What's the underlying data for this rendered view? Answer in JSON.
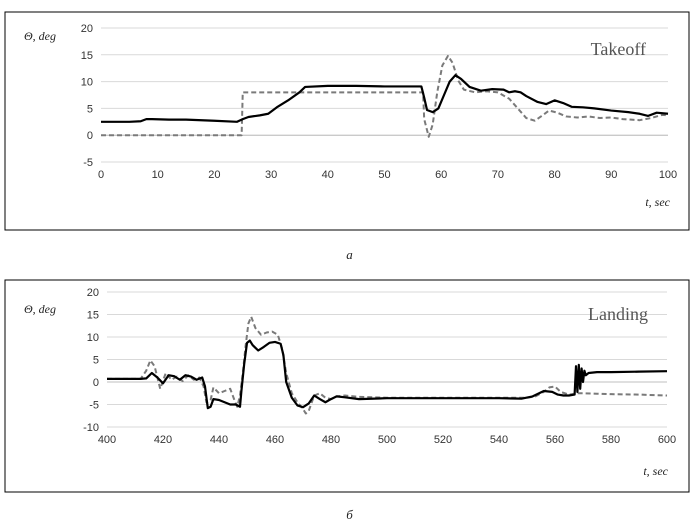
{
  "captions": [
    "a",
    "б"
  ],
  "colors": {
    "series_1": "#000000",
    "series_2": "#7a7a7a",
    "grid": "#d9d9d9",
    "frame": "#000000"
  },
  "chart_data": [
    {
      "type": "line",
      "title": "Takeoff",
      "xlabel": "t, sec",
      "ylabel": "Θ, deg",
      "xlim": [
        0,
        100
      ],
      "ylim": [
        -5,
        20
      ],
      "xticks": [
        0,
        10,
        20,
        30,
        40,
        50,
        60,
        70,
        80,
        90,
        100
      ],
      "yticks": [
        -5,
        0,
        5,
        10,
        15,
        20
      ],
      "grid": "horizontal",
      "series": [
        {
          "style": "solid",
          "x": [
            0,
            5,
            7,
            8,
            9,
            12,
            15,
            20,
            24,
            25,
            26,
            28,
            29.5,
            31,
            33,
            35,
            36,
            40,
            45,
            50,
            55,
            56.5,
            57,
            57.5,
            58.5,
            59.5,
            60.5,
            61.5,
            62.5,
            63.5,
            65,
            67,
            69,
            71,
            72,
            73,
            74,
            75,
            77,
            78.5,
            80,
            81.5,
            83,
            85,
            87,
            90,
            93,
            95,
            96.5,
            98,
            100
          ],
          "y": [
            2.5,
            2.5,
            2.6,
            3.0,
            3.0,
            2.9,
            2.9,
            2.7,
            2.5,
            3.0,
            3.4,
            3.7,
            4.0,
            5.2,
            6.5,
            8.0,
            9.0,
            9.2,
            9.2,
            9.1,
            9.1,
            9.1,
            7.0,
            4.7,
            4.3,
            5.0,
            7.5,
            10.0,
            11.2,
            10.5,
            9.0,
            8.3,
            8.6,
            8.5,
            8.0,
            8.2,
            8.0,
            7.3,
            6.2,
            5.8,
            6.5,
            6.0,
            5.3,
            5.2,
            5.0,
            4.6,
            4.3,
            4.0,
            3.6,
            4.2,
            4.0
          ]
        },
        {
          "style": "dashed",
          "x": [
            0,
            24.8,
            25,
            30,
            40,
            50,
            56.8,
            57,
            57.8,
            58.5,
            59.3,
            60.2,
            61.2,
            62,
            63,
            64,
            66,
            68,
            70,
            72,
            73.5,
            75,
            76.5,
            78,
            79,
            80.5,
            82,
            84,
            86,
            88,
            90,
            92,
            95,
            97,
            99,
            100
          ],
          "y": [
            0,
            0,
            8.0,
            8.0,
            8.0,
            8.0,
            8.0,
            3.0,
            -0.3,
            2.0,
            8.0,
            13.0,
            14.8,
            13.5,
            10.2,
            8.5,
            8.0,
            8.2,
            8.0,
            6.8,
            5.0,
            3.2,
            2.7,
            3.8,
            4.6,
            4.2,
            3.5,
            3.3,
            3.5,
            3.2,
            3.3,
            3.0,
            2.8,
            3.2,
            3.8,
            3.7
          ]
        }
      ]
    },
    {
      "type": "line",
      "title": "Landing",
      "xlabel": "t, sec",
      "ylabel": "Θ, deg",
      "xlim": [
        400,
        600
      ],
      "ylim": [
        -10,
        20
      ],
      "xticks": [
        400,
        420,
        440,
        460,
        480,
        500,
        520,
        540,
        560,
        580,
        600
      ],
      "yticks": [
        -10,
        -5,
        0,
        5,
        10,
        15,
        20
      ],
      "grid": "horizontal",
      "series": [
        {
          "style": "solid",
          "x": [
            400,
            412,
            414,
            416,
            418,
            420,
            422,
            424,
            426,
            428,
            430,
            432,
            434,
            435,
            436,
            437,
            438,
            440,
            442,
            444,
            446,
            447.5,
            448,
            449,
            450,
            451,
            452,
            454,
            456,
            458,
            460,
            462,
            463,
            464,
            466,
            468,
            470,
            472,
            474,
            476,
            478,
            480,
            482,
            485,
            490,
            500,
            520,
            540,
            548,
            552,
            556,
            559,
            561,
            563,
            565,
            567,
            567.5,
            568,
            568.5,
            569,
            569.5,
            570,
            570.5,
            571,
            572,
            575,
            580,
            590,
            600
          ],
          "y": [
            0.7,
            0.7,
            0.8,
            2.0,
            1.0,
            -0.3,
            1.5,
            1.3,
            0.5,
            1.5,
            1.2,
            0.5,
            1.0,
            -1.0,
            -5.8,
            -5.5,
            -3.8,
            -4.0,
            -4.5,
            -5.0,
            -5.0,
            -5.5,
            -2.0,
            4.0,
            8.7,
            9.2,
            8.2,
            7.0,
            7.8,
            8.7,
            8.9,
            8.5,
            6.0,
            0.0,
            -3.5,
            -5.2,
            -5.6,
            -4.8,
            -3.0,
            -3.8,
            -4.5,
            -3.8,
            -3.2,
            -3.4,
            -3.8,
            -3.6,
            -3.6,
            -3.6,
            -3.7,
            -3.2,
            -2.0,
            -2.2,
            -2.8,
            -3.0,
            -3.0,
            -2.8,
            3.5,
            -2.2,
            3.8,
            -1.5,
            3.0,
            0.0,
            2.5,
            1.5,
            2.0,
            2.2,
            2.2,
            2.3,
            2.4
          ]
        },
        {
          "style": "dashed",
          "x": [
            400,
            412,
            414,
            415.5,
            417,
            419,
            420,
            421,
            423,
            425,
            427,
            429,
            431,
            433,
            434.5,
            435.5,
            437,
            438,
            440,
            442,
            444,
            445.5,
            446.5,
            447.5,
            448.5,
            449.5,
            450.5,
            451.5,
            453,
            455,
            457,
            459,
            461,
            462.5,
            464,
            466,
            468,
            470,
            471,
            472,
            474,
            476,
            478,
            480,
            482,
            485,
            490,
            500,
            520,
            540,
            550,
            553,
            556,
            558,
            560,
            562,
            565,
            568,
            570,
            575,
            580,
            590,
            600
          ],
          "y": [
            0.7,
            0.7,
            2.5,
            4.8,
            3.5,
            -1.5,
            0.3,
            2.0,
            0.5,
            1.2,
            0.2,
            1.5,
            0.5,
            1.0,
            -1.0,
            -4.5,
            -4.0,
            -1.2,
            -2.5,
            -2.0,
            -1.5,
            -4.0,
            -5.5,
            -3.0,
            2.0,
            8.0,
            13.0,
            14.5,
            12.0,
            10.5,
            11.0,
            11.2,
            10.5,
            7.5,
            2.0,
            -2.5,
            -4.5,
            -6.0,
            -7.0,
            -6.5,
            -3.0,
            -2.5,
            -3.5,
            -3.8,
            -3.2,
            -3.0,
            -3.3,
            -3.5,
            -3.5,
            -3.5,
            -3.5,
            -3.2,
            -2.2,
            -1.2,
            -1.0,
            -2.2,
            -2.8,
            -2.5,
            -2.5,
            -2.6,
            -2.7,
            -2.8,
            -3.0
          ]
        }
      ]
    }
  ]
}
